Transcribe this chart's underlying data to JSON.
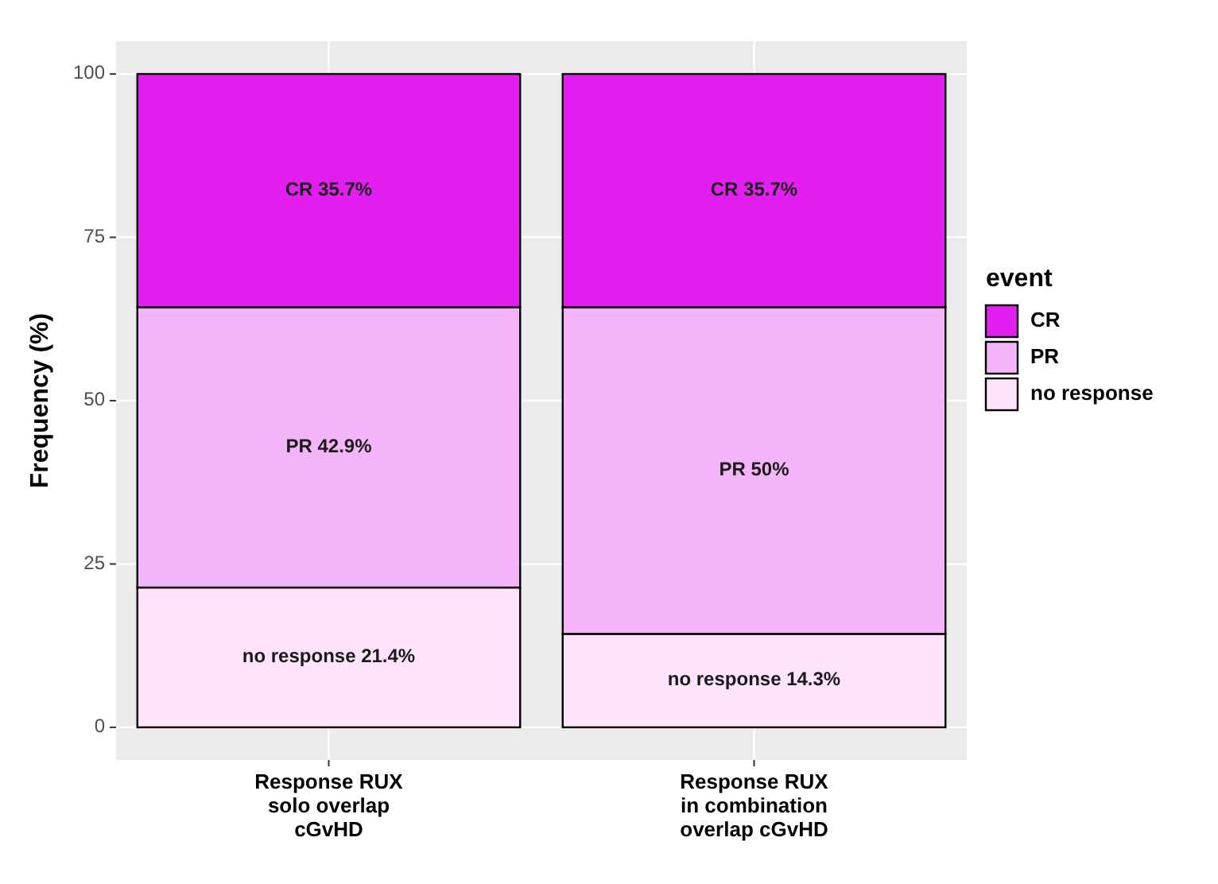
{
  "chart_data": {
    "type": "bar",
    "stacked": true,
    "ylabel": "Frequency (%)",
    "legend_title": "event",
    "legend": "right",
    "grid": true,
    "categories": [
      "Response RUX\nsolo overlap\ncGvHD",
      "Response RUX\nin combination\noverlap cGvHD"
    ],
    "ylim": [
      -5,
      105
    ],
    "yticks": [
      0,
      25,
      50,
      75,
      100
    ],
    "series": [
      {
        "name": "no response",
        "color": "#fde3fb",
        "values": [
          21.4,
          14.3
        ],
        "value_labels": [
          "no response 21.4%",
          "no response 14.3%"
        ]
      },
      {
        "name": "PR",
        "color": "#f3b4f8",
        "values": [
          42.9,
          50
        ],
        "value_labels": [
          "PR 42.9%",
          "PR 50%"
        ]
      },
      {
        "name": "CR",
        "color": "#e21ff0",
        "values": [
          35.7,
          35.7
        ],
        "value_labels": [
          "CR 35.7%",
          "CR 35.7%"
        ]
      }
    ]
  }
}
